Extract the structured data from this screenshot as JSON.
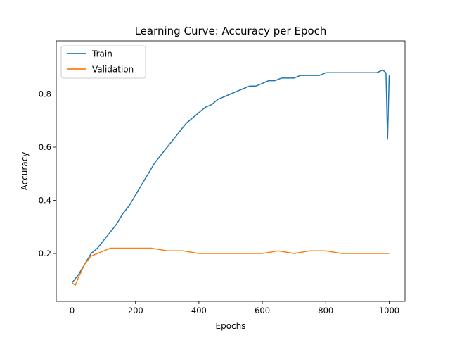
{
  "chart_data": {
    "type": "line",
    "title": "Learning Curve: Accuracy per Epoch",
    "xlabel": "Epochs",
    "ylabel": "Accuracy",
    "xlim": [
      -50,
      1050
    ],
    "ylim": [
      0.02,
      1.0
    ],
    "xticks": [
      0,
      200,
      400,
      600,
      800,
      1000
    ],
    "xtick_labels": [
      "0",
      "200",
      "400",
      "600",
      "800",
      "1000"
    ],
    "yticks": [
      0.2,
      0.4,
      0.6,
      0.8
    ],
    "ytick_labels": [
      "0.2",
      "0.4",
      "0.6",
      "0.8"
    ],
    "grid": false,
    "legend_position": "upper left",
    "series": [
      {
        "name": "Train",
        "color": "#1f77b4",
        "x": [
          0,
          20,
          40,
          60,
          80,
          100,
          120,
          140,
          160,
          180,
          200,
          220,
          240,
          260,
          280,
          300,
          320,
          340,
          360,
          380,
          400,
          420,
          440,
          460,
          480,
          500,
          520,
          540,
          560,
          580,
          600,
          620,
          640,
          660,
          680,
          700,
          720,
          740,
          760,
          780,
          800,
          820,
          840,
          860,
          880,
          900,
          920,
          940,
          960,
          980,
          990,
          995,
          1000
        ],
        "y": [
          0.09,
          0.12,
          0.16,
          0.2,
          0.22,
          0.25,
          0.28,
          0.31,
          0.35,
          0.38,
          0.42,
          0.46,
          0.5,
          0.54,
          0.57,
          0.6,
          0.63,
          0.66,
          0.69,
          0.71,
          0.73,
          0.75,
          0.76,
          0.78,
          0.79,
          0.8,
          0.81,
          0.82,
          0.83,
          0.83,
          0.84,
          0.85,
          0.85,
          0.86,
          0.86,
          0.86,
          0.87,
          0.87,
          0.87,
          0.87,
          0.88,
          0.88,
          0.88,
          0.88,
          0.88,
          0.88,
          0.88,
          0.88,
          0.88,
          0.89,
          0.88,
          0.63,
          0.87
        ]
      },
      {
        "name": "Validation",
        "color": "#ff7f0e",
        "x": [
          0,
          10,
          20,
          40,
          60,
          80,
          100,
          120,
          140,
          160,
          180,
          200,
          250,
          300,
          350,
          400,
          450,
          500,
          550,
          600,
          650,
          700,
          750,
          800,
          850,
          900,
          950,
          1000
        ],
        "y": [
          0.09,
          0.08,
          0.11,
          0.16,
          0.19,
          0.2,
          0.21,
          0.22,
          0.22,
          0.22,
          0.22,
          0.22,
          0.22,
          0.21,
          0.21,
          0.2,
          0.2,
          0.2,
          0.2,
          0.2,
          0.21,
          0.2,
          0.21,
          0.21,
          0.2,
          0.2,
          0.2,
          0.2
        ]
      }
    ]
  }
}
